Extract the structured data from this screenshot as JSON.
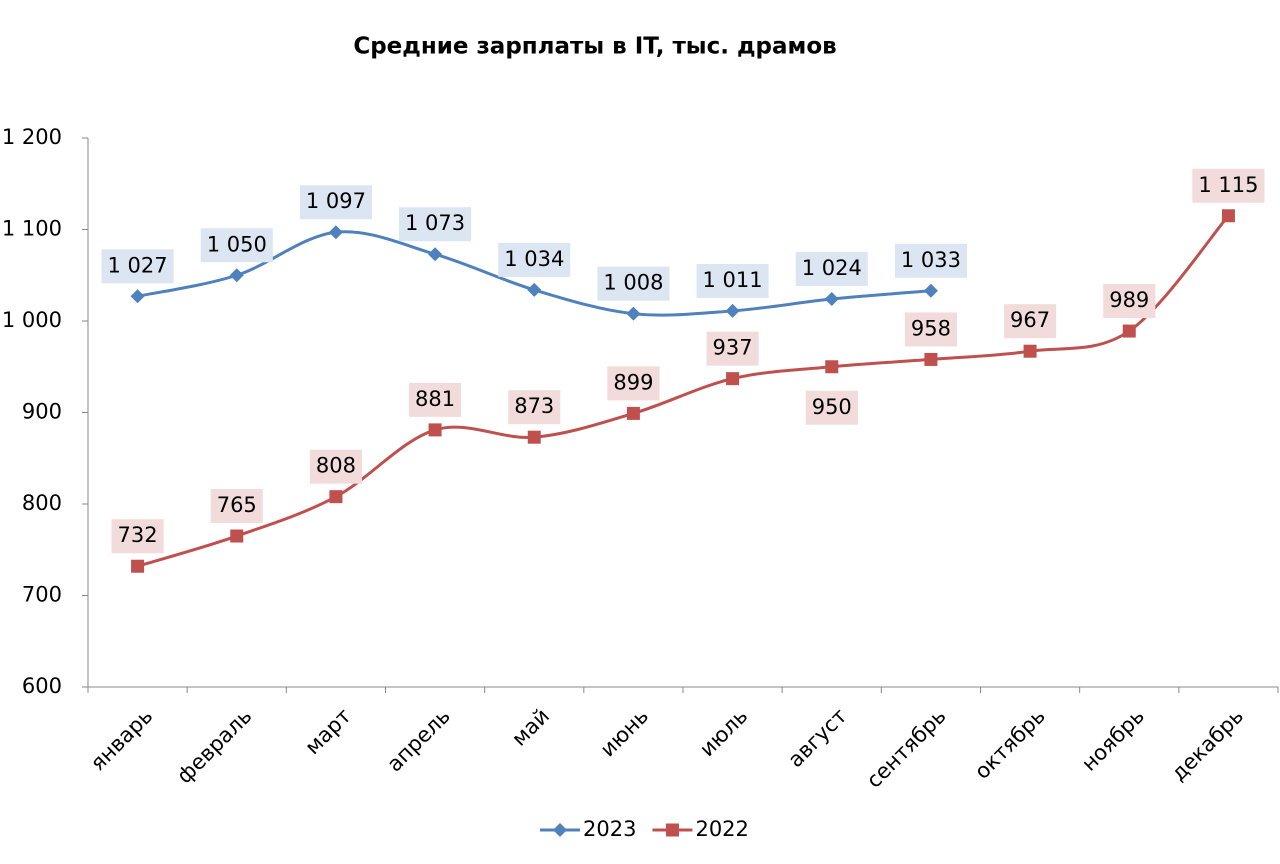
{
  "chart_data": {
    "type": "line",
    "title": "Средние зарплаты в  IT, тыс. драмов",
    "categories": [
      "январь",
      "февраль",
      "март",
      "апрель",
      "май",
      "июнь",
      "июль",
      "август",
      "сентябрь",
      "октябрь",
      "ноябрь",
      "декабрь"
    ],
    "series": [
      {
        "name": "2023",
        "color": "#4f81bd",
        "marker": "diamond",
        "label_background": "#dce6f2",
        "values": [
          1027,
          1050,
          1097,
          1073,
          1034,
          1008,
          1011,
          1024,
          1033,
          null,
          null,
          null
        ],
        "value_labels": [
          "1 027",
          "1 050",
          "1 097",
          "1 073",
          "1 034",
          "1 008",
          "1 011",
          "1 024",
          "1 033",
          null,
          null,
          null
        ]
      },
      {
        "name": "2022",
        "color": "#c0504d",
        "marker": "square",
        "label_background": "#f2dcdb",
        "values": [
          732,
          765,
          808,
          881,
          873,
          899,
          937,
          950,
          958,
          967,
          989,
          1115
        ],
        "value_labels": [
          "732",
          "765",
          "808",
          "881",
          "873",
          "899",
          "937",
          "950",
          "958",
          "967",
          "989",
          "1 115"
        ]
      }
    ],
    "ylim": [
      600,
      1200
    ],
    "yticks": [
      600,
      700,
      800,
      900,
      {
        "value": 1000,
        "label": "1 000"
      },
      {
        "value": 1100,
        "label": "1 100"
      },
      {
        "value": 1200,
        "label": "1 200"
      }
    ],
    "grid": false,
    "legend": "bottom"
  }
}
